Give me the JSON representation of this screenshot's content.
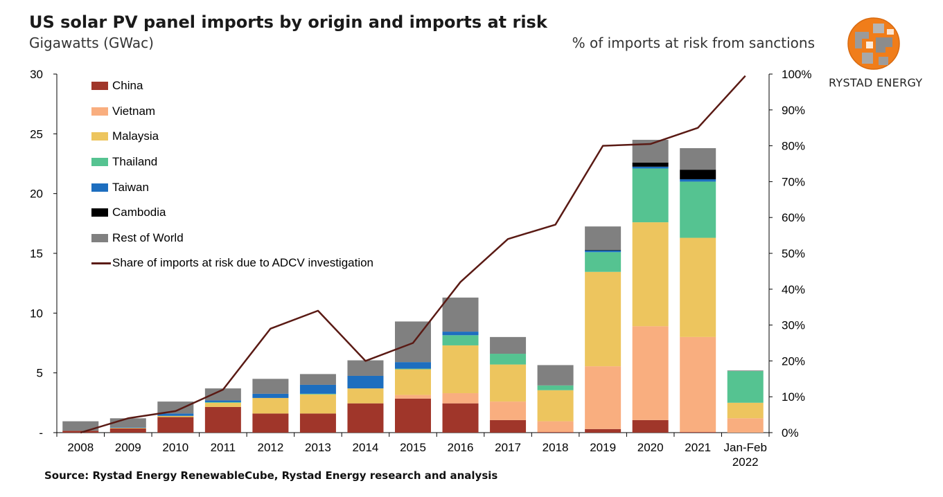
{
  "title": "US solar PV panel imports by origin and imports at risk",
  "subtitle": "Gigawatts (GWac)",
  "right_axis_title": "% of imports at risk from sanctions",
  "source": "Source: Rystad Energy RenewableCube, Rystad Energy research and analysis",
  "brand": "RYSTAD ENERGY",
  "logo_icon": "rystad-globe-logo",
  "chart_data": {
    "type": "bar",
    "stacked": true,
    "categories": [
      "2008",
      "2009",
      "2010",
      "2011",
      "2012",
      "2013",
      "2014",
      "2015",
      "2016",
      "2017",
      "2018",
      "2019",
      "2020",
      "2021",
      "Jan-Feb 2022"
    ],
    "category_labels": [
      [
        "2008"
      ],
      [
        "2009"
      ],
      [
        "2010"
      ],
      [
        "2011"
      ],
      [
        "2012"
      ],
      [
        "2013"
      ],
      [
        "2014"
      ],
      [
        "2015"
      ],
      [
        "2016"
      ],
      [
        "2017"
      ],
      [
        "2018"
      ],
      [
        "2019"
      ],
      [
        "2020"
      ],
      [
        "2021"
      ],
      [
        "Jan-Feb",
        "2022"
      ]
    ],
    "series": [
      {
        "name": "China",
        "color": "#a0362a",
        "values": [
          0.15,
          0.35,
          1.3,
          2.15,
          1.6,
          1.6,
          2.45,
          2.85,
          2.45,
          1.05,
          0.05,
          0.3,
          1.05,
          0.05,
          0.0
        ]
      },
      {
        "name": "Vietnam",
        "color": "#f9ae7f",
        "values": [
          0.0,
          0.0,
          0.0,
          0.0,
          0.0,
          0.0,
          0.0,
          0.3,
          0.85,
          1.55,
          0.9,
          5.25,
          7.85,
          7.95,
          1.2
        ]
      },
      {
        "name": "Malaysia",
        "color": "#edc55e",
        "values": [
          0.0,
          0.05,
          0.1,
          0.35,
          1.3,
          1.6,
          1.25,
          2.15,
          4.0,
          3.1,
          2.6,
          7.9,
          8.7,
          8.3,
          1.3
        ]
      },
      {
        "name": "Thailand",
        "color": "#55c391",
        "values": [
          0.0,
          0.0,
          0.0,
          0.05,
          0.0,
          0.05,
          0.0,
          0.05,
          0.85,
          0.9,
          0.4,
          1.65,
          4.5,
          4.7,
          2.65
        ]
      },
      {
        "name": "Taiwan",
        "color": "#1d6ebf",
        "values": [
          0.0,
          0.05,
          0.2,
          0.15,
          0.35,
          0.75,
          1.05,
          0.55,
          0.3,
          0.0,
          0.0,
          0.15,
          0.15,
          0.2,
          0.0
        ]
      },
      {
        "name": "Cambodia",
        "color": "#000000",
        "values": [
          0.0,
          0.0,
          0.0,
          0.0,
          0.0,
          0.0,
          0.0,
          0.0,
          0.0,
          0.0,
          0.0,
          0.05,
          0.35,
          0.8,
          0.0
        ]
      },
      {
        "name": "Rest of World",
        "color": "#808080",
        "values": [
          0.8,
          0.75,
          1.0,
          1.0,
          1.25,
          0.9,
          1.3,
          3.4,
          2.85,
          1.4,
          1.7,
          1.95,
          1.9,
          1.8,
          0.05
        ]
      }
    ],
    "line": {
      "name": "Share of imports at risk due to ADCV investigation",
      "color": "#5a1a14",
      "axis": "right",
      "values": [
        0,
        4,
        6,
        12,
        29,
        34,
        20,
        25,
        42,
        54,
        58,
        80,
        80.5,
        85,
        99.5
      ]
    },
    "left_axis": {
      "ylim": [
        0,
        30
      ],
      "ticks": [
        0,
        5,
        10,
        15,
        20,
        25,
        30
      ],
      "tick_labels": [
        "-",
        "5",
        "10",
        "15",
        "20",
        "25",
        "30"
      ]
    },
    "right_axis": {
      "ylim": [
        0,
        100
      ],
      "ticks": [
        0,
        10,
        20,
        30,
        40,
        50,
        60,
        70,
        80,
        90,
        100
      ],
      "tick_labels": [
        "0%",
        "10%",
        "20%",
        "30%",
        "40%",
        "50%",
        "60%",
        "70%",
        "80%",
        "90%",
        "100%"
      ]
    },
    "legend_position": "top-left",
    "grid": false
  }
}
